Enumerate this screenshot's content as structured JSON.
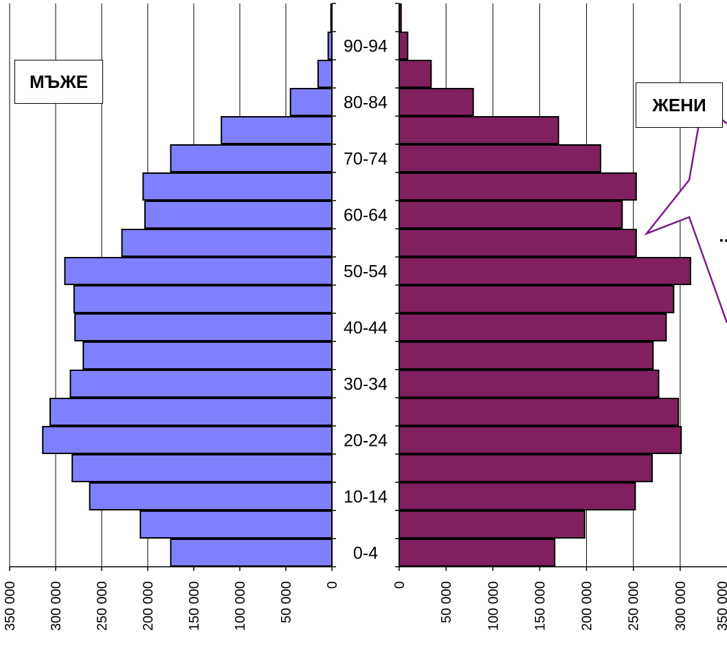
{
  "chart_data": {
    "type": "bar",
    "orientation": "horizontal",
    "layout": "population-pyramid",
    "age_labels": [
      "0-4",
      "10-14",
      "20-24",
      "30-34",
      "40-44",
      "50-54",
      "60-64",
      "70-74",
      "80-84",
      "90-94"
    ],
    "n_groups": 20,
    "men": {
      "name": "МЪЖЕ",
      "color": "#8080ff",
      "values": [
        175000,
        208000,
        263000,
        282000,
        314000,
        306000,
        284000,
        270000,
        279000,
        280000,
        290000,
        228000,
        203000,
        205000,
        175000,
        120000,
        45000,
        15000,
        4000,
        1000
      ],
      "axis_ticks": [
        "350 000",
        "300 000",
        "250 000",
        "200 000",
        "150 000",
        "100 000",
        "50 000",
        "0"
      ],
      "xlim": [
        0,
        350000
      ]
    },
    "women": {
      "name": "ЖЕНИ",
      "color": "#80205e",
      "values": [
        166000,
        198000,
        252000,
        270000,
        301000,
        298000,
        277000,
        271000,
        285000,
        293000,
        311000,
        253000,
        238000,
        253000,
        215000,
        170000,
        79000,
        34000,
        9000,
        2000
      ],
      "axis_ticks": [
        "0",
        "50 000",
        "100 000",
        "150 000",
        "200 000",
        "250 000",
        "300 000",
        "350 000"
      ],
      "xlim": [
        0,
        350000
      ]
    },
    "grid": true
  },
  "labels": {
    "men": "МЪЖЕ",
    "women": "ЖЕНИ"
  },
  "callout": {
    "text": "?",
    "border_color": "#7a1a8a"
  }
}
